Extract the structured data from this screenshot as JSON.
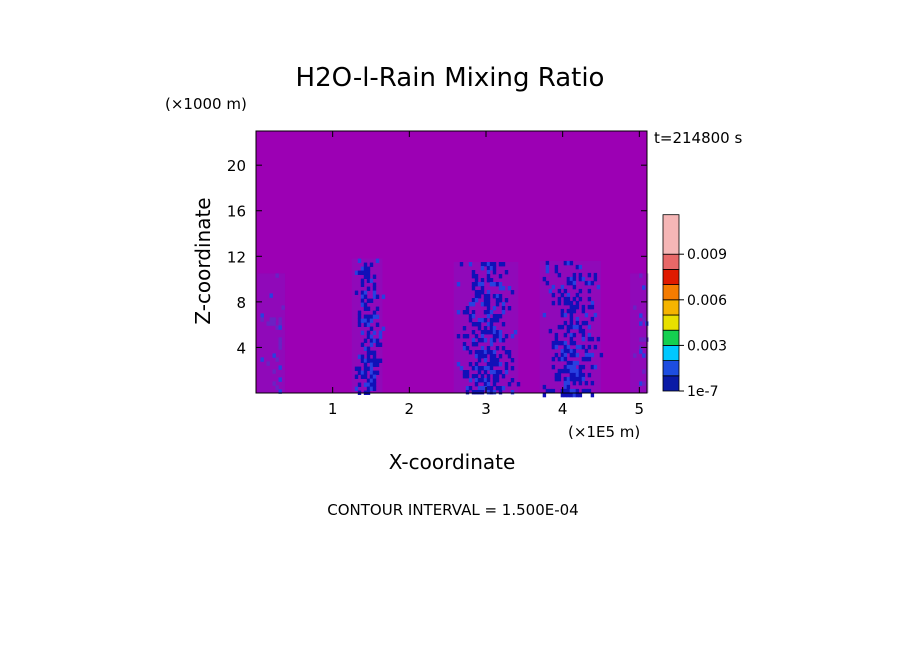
{
  "chart_data": {
    "type": "heatmap",
    "title": "H2O-l-Rain Mixing Ratio",
    "xlabel": "X-coordinate",
    "ylabel": "Z-coordinate",
    "x_unit_label": "(×1E5 m)",
    "y_unit_label": "(×1000 m)",
    "time_label": "t=214800 s",
    "footer": "CONTOUR INTERVAL = 1.500E-04",
    "xlim": [
      0,
      5.1
    ],
    "ylim": [
      0,
      23
    ],
    "x_ticks": [
      1,
      2,
      3,
      4,
      5
    ],
    "x_tick_labels": [
      "1",
      "2",
      "3",
      "4",
      "5"
    ],
    "y_ticks": [
      4,
      8,
      12,
      16,
      20
    ],
    "y_tick_labels": [
      "4",
      "8",
      "12",
      "16",
      "20"
    ],
    "background_color": "#9c00b4",
    "colorbar": {
      "levels": 9,
      "colors": [
        "#0a1aa6",
        "#1d4de0",
        "#00c8ff",
        "#14d050",
        "#e8e000",
        "#f5b400",
        "#f57c00",
        "#e01a00",
        "#e86868",
        "#f5b6b6"
      ],
      "tick_labels": [
        {
          "level": 0,
          "label": "1e-7"
        },
        {
          "level": 3,
          "label": "0.003"
        },
        {
          "level": 6,
          "label": "0.006"
        },
        {
          "level": 9,
          "label": "0.009"
        }
      ]
    },
    "rain_columns": [
      {
        "x_center": 0.2,
        "half_width": 0.18,
        "top": 10.5,
        "density": 0.18,
        "color": "#6a22c4"
      },
      {
        "x_center": 1.45,
        "half_width": 0.2,
        "top": 11.8,
        "density": 0.6,
        "color": "#1010b8"
      },
      {
        "x_center": 3.0,
        "half_width": 0.42,
        "top": 11.5,
        "density": 0.55,
        "color": "#1010b8"
      },
      {
        "x_center": 4.1,
        "half_width": 0.4,
        "top": 11.6,
        "density": 0.55,
        "color": "#1010b8"
      },
      {
        "x_center": 5.0,
        "half_width": 0.12,
        "top": 10.5,
        "density": 0.15,
        "color": "#6a22c4"
      }
    ]
  }
}
